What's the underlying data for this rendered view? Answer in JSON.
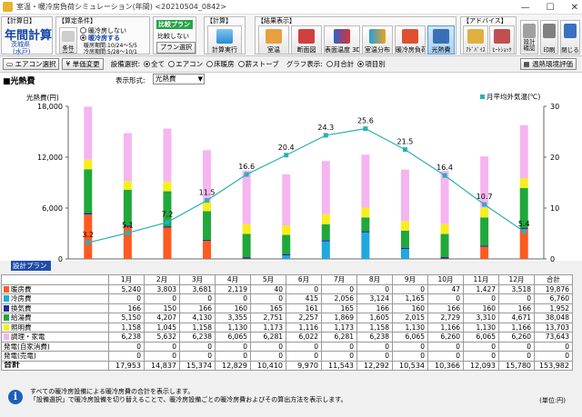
{
  "window": {
    "title": "室温・暖冷房負荷シミュレーション(年間) <20210504_0842>",
    "min": "—",
    "max": "☐",
    "close": "✕"
  },
  "ribbon": {
    "calc_group": {
      "head": "【計算日】",
      "title": "年間計算",
      "region": "茨城県",
      "city": "(水戸)"
    },
    "cond_group": {
      "head": "【算定条件】",
      "opt1": "暖冷房しない",
      "opt2": "暖冷房する",
      "heat_period": "暖房期間:10/24～5/5",
      "cool_period": "冷房期間:5/28～10/1",
      "btn": "条件設定"
    },
    "compare_group": {
      "badge": "比較プラン",
      "opt1": "比較しない",
      "btn": "プラン選択"
    },
    "calc_btn_group": {
      "head": "【計算】",
      "btn": "計算実行"
    },
    "result_group": {
      "head": "【結果表示】",
      "buttons": [
        "室温",
        "断面図",
        "表面温度 3D",
        "室温分布",
        "暖冷房負荷",
        "光熱費"
      ]
    },
    "advice_group": {
      "head": "【アドバイス】",
      "buttons": [
        "ｱﾄﾞﾊﾞｲｽ",
        "ﾋｰﾄｼｮｯｸ"
      ]
    },
    "misc_buttons": [
      "設計確認",
      "印刷",
      "閉じる"
    ]
  },
  "toolbar2": {
    "aircon_btn": "エアコン選択",
    "price_btn": "単価変更",
    "equip_label": "設備選択:",
    "equip_options": [
      "全て",
      "エアコン",
      "床暖房",
      "薪ストーブ"
    ],
    "equip_selected": 0,
    "graph_label": "グラフ表示:",
    "graph_options": [
      "月合計",
      "項目別"
    ],
    "graph_selected": 1,
    "env_btn": "温熱環境評価"
  },
  "chart_header": {
    "section_title": "■光熱費",
    "format_label": "表示形式:",
    "format_value": "光熱費"
  },
  "chart_data": {
    "type": "bar",
    "stacked": true,
    "categories": [
      "1月",
      "2月",
      "3月",
      "4月",
      "5月",
      "6月",
      "7月",
      "8月",
      "9月",
      "10月",
      "11月",
      "12月"
    ],
    "y_label": "光熱費(円)",
    "y_ticks": [
      "0",
      "6,000",
      "12,000",
      "18,000"
    ],
    "ylim": [
      0,
      18000
    ],
    "y2_label": "月平均外気温(℃)",
    "y2_ticks": [
      "0",
      "10",
      "20",
      "30"
    ],
    "y2lim": [
      0,
      30
    ],
    "series": [
      {
        "name": "暖房費",
        "color": "#ff5a1f",
        "values": [
          5240,
          3803,
          3681,
          2119,
          40,
          0,
          0,
          0,
          0,
          47,
          1427,
          3518
        ]
      },
      {
        "name": "冷房費",
        "color": "#1fa8e0",
        "values": [
          0,
          0,
          0,
          0,
          0,
          415,
          2056,
          3124,
          1165,
          0,
          0,
          0
        ]
      },
      {
        "name": "換気費",
        "color": "#1a2f9c",
        "values": [
          166,
          150,
          166,
          160,
          165,
          161,
          165,
          166,
          160,
          166,
          160,
          166
        ]
      },
      {
        "name": "給湯費",
        "color": "#20a83a",
        "values": [
          5150,
          4207,
          4130,
          3355,
          2751,
          2257,
          1869,
          1605,
          2015,
          2729,
          3310,
          4671
        ]
      },
      {
        "name": "照明費",
        "color": "#f6ee1e",
        "values": [
          1158,
          1045,
          1158,
          1130,
          1173,
          1116,
          1173,
          1158,
          1130,
          1166,
          1130,
          1166
        ]
      },
      {
        "name": "調理・家電",
        "color": "#f5b5f0",
        "values": [
          6238,
          5632,
          6238,
          6065,
          6281,
          6022,
          6281,
          6238,
          6065,
          6260,
          6065,
          6260
        ]
      }
    ],
    "line": {
      "name": "月平均外気温(℃)",
      "color": "#2ab0b8",
      "values": [
        3.2,
        5.1,
        7.2,
        11.5,
        16.6,
        20.4,
        24.3,
        25.6,
        21.5,
        16.4,
        10.7,
        5.4
      ]
    },
    "legend_position": "top-right",
    "grid": false
  },
  "table": {
    "design_label": "設計プラン",
    "headers": [
      "",
      "1月",
      "2月",
      "3月",
      "4月",
      "5月",
      "6月",
      "7月",
      "8月",
      "9月",
      "10月",
      "11月",
      "12月",
      "合計"
    ],
    "rows": [
      {
        "name": "暖房費",
        "color": "#ff5a1f",
        "cells": [
          "5,240",
          "3,803",
          "3,681",
          "2,119",
          "40",
          "0",
          "0",
          "0",
          "0",
          "47",
          "1,427",
          "3,518",
          "19,876"
        ]
      },
      {
        "name": "冷房費",
        "color": "#1fa8e0",
        "cells": [
          "0",
          "0",
          "0",
          "0",
          "0",
          "415",
          "2,056",
          "3,124",
          "1,165",
          "0",
          "0",
          "0",
          "6,760"
        ]
      },
      {
        "name": "換気費",
        "color": "#1a2f9c",
        "cells": [
          "166",
          "150",
          "166",
          "160",
          "165",
          "161",
          "165",
          "166",
          "160",
          "166",
          "160",
          "166",
          "1,952"
        ]
      },
      {
        "name": "給湯費",
        "color": "#20a83a",
        "cells": [
          "5,150",
          "4,207",
          "4,130",
          "3,355",
          "2,751",
          "2,257",
          "1,869",
          "1,605",
          "2,015",
          "2,729",
          "3,310",
          "4,671",
          "38,048"
        ]
      },
      {
        "name": "照明費",
        "color": "#f6ee1e",
        "cells": [
          "1,158",
          "1,045",
          "1,158",
          "1,130",
          "1,173",
          "1,116",
          "1,173",
          "1,158",
          "1,130",
          "1,166",
          "1,130",
          "1,166",
          "13,703"
        ]
      },
      {
        "name": "調理・家電",
        "color": "#f5b5f0",
        "cells": [
          "6,238",
          "5,632",
          "6,238",
          "6,065",
          "6,281",
          "6,022",
          "6,281",
          "6,238",
          "6,065",
          "6,260",
          "6,065",
          "6,260",
          "73,643"
        ]
      },
      {
        "name": "発電(自家消費)",
        "color": "",
        "cells": [
          "0",
          "0",
          "0",
          "0",
          "0",
          "0",
          "0",
          "0",
          "0",
          "0",
          "0",
          "0",
          "0"
        ]
      },
      {
        "name": "発電(売電)",
        "color": "",
        "cells": [
          "0",
          "0",
          "0",
          "0",
          "0",
          "0",
          "0",
          "0",
          "0",
          "0",
          "0",
          "0",
          "0"
        ]
      }
    ],
    "total": {
      "name": "合計",
      "cells": [
        "17,953",
        "14,837",
        "15,374",
        "12,829",
        "10,410",
        "9,970",
        "11,543",
        "12,292",
        "10,534",
        "10,366",
        "12,093",
        "15,780",
        "153,982"
      ]
    }
  },
  "note": {
    "line1": "すべての暖冷房設備による暖冷房費の合計を表示します。",
    "line2": "「設備選択」で暖冷房設備を切り替えることで、暖冷房設備ごとの暖冷房費およびその算出方法を表示します。",
    "unit": "(単位:円)"
  }
}
